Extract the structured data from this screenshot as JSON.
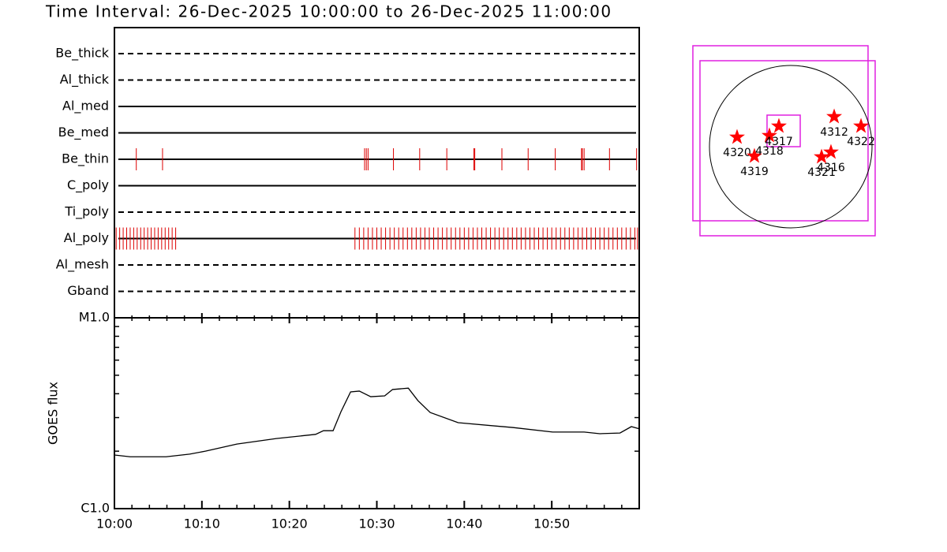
{
  "title": "Time Interval: 26-Dec-2025 10:00:00 to 26-Dec-2025 11:00:00",
  "chart_data": [
    {
      "type": "timeline",
      "categories": [
        "Be_thick",
        "Al_thick",
        "Al_med",
        "Be_med",
        "Be_thin",
        "C_poly",
        "Ti_poly",
        "Al_poly",
        "Al_mesh",
        "Gband"
      ],
      "line_styles": [
        "dashed",
        "dashed",
        "solid",
        "solid",
        "solid",
        "solid",
        "dashed",
        "solid",
        "dashed",
        "dashed"
      ],
      "color": "#dd0000",
      "xlim": [
        0,
        60
      ],
      "events": [
        [],
        [],
        [],
        [],
        [
          2.5,
          5.5,
          28.6,
          28.8,
          29.0,
          31.9,
          34.9,
          38.0,
          41.1,
          41.2,
          44.3,
          47.3,
          50.4,
          53.4,
          53.5,
          53.7,
          56.6,
          59.7
        ],
        [],
        [],
        [
          0.2,
          0.6,
          1.0,
          1.4,
          1.8,
          2.2,
          2.6,
          3.0,
          3.4,
          3.8,
          4.2,
          4.6,
          5.0,
          5.4,
          5.8,
          6.2,
          6.6,
          7.0,
          27.5,
          28.0,
          28.5,
          29.0,
          29.5,
          30.0,
          30.5,
          31.0,
          31.5,
          32.0,
          32.5,
          33.0,
          33.5,
          34.0,
          34.5,
          35.0,
          35.5,
          36.0,
          36.5,
          37.0,
          37.5,
          38.0,
          38.5,
          39.0,
          39.5,
          40.0,
          40.5,
          41.0,
          41.5,
          42.0,
          42.5,
          43.0,
          43.5,
          44.0,
          44.5,
          45.0,
          45.5,
          46.0,
          46.5,
          47.0,
          47.5,
          48.0,
          48.5,
          49.0,
          49.5,
          50.0,
          50.5,
          51.0,
          51.5,
          52.0,
          52.5,
          53.0,
          53.5,
          54.0,
          54.5,
          55.0,
          55.5,
          56.0,
          56.5,
          57.0,
          57.5,
          58.0,
          58.5,
          59.0,
          59.5,
          59.8
        ],
        [],
        []
      ]
    },
    {
      "type": "line",
      "y_label": "GOES flux",
      "color": "#000000",
      "log_scale": true,
      "x": [
        0,
        1.8,
        5.9,
        8.6,
        10.4,
        14,
        18.5,
        23,
        23.9,
        25,
        25.9,
        27,
        28,
        29.3,
        30.9,
        31.8,
        33.6,
        34.7,
        36.1,
        39.3,
        45.6,
        50.1,
        53.7,
        55.5,
        57.8,
        59.1,
        60
      ],
      "values": [
        1.91e-06,
        1.87e-06,
        1.87e-06,
        1.93e-06,
        2e-06,
        2.18e-06,
        2.33e-06,
        2.45e-06,
        2.56e-06,
        2.56e-06,
        3.22e-06,
        4.09e-06,
        4.13e-06,
        3.86e-06,
        3.9e-06,
        4.21e-06,
        4.28e-06,
        3.68e-06,
        3.19e-06,
        2.82e-06,
        2.66e-06,
        2.52e-06,
        2.52e-06,
        2.47e-06,
        2.49e-06,
        2.69e-06,
        2.62e-06
      ],
      "xlim": [
        0,
        60
      ],
      "xticks": [
        {
          "value": 0,
          "label": "10:00"
        },
        {
          "value": 10,
          "label": "10:10"
        },
        {
          "value": 20,
          "label": "10:20"
        },
        {
          "value": 30,
          "label": "10:30"
        },
        {
          "value": 40,
          "label": "10:40"
        },
        {
          "value": 50,
          "label": "10:50"
        }
      ],
      "xminorticks": [
        2,
        4,
        6,
        8,
        12,
        14,
        16,
        18,
        22,
        24,
        26,
        28,
        32,
        34,
        36,
        38,
        42,
        44,
        46,
        48,
        52,
        54,
        56,
        58
      ],
      "ylim": [
        1e-06,
        1e-05
      ],
      "yticks": [
        {
          "value": 1e-06,
          "label": "C1.0"
        },
        {
          "value": 1e-05,
          "label": "M1.0"
        }
      ],
      "yminorticks": [
        2e-06,
        3e-06,
        4e-06,
        5e-06,
        6e-06,
        7e-06,
        8e-06,
        9e-06
      ]
    },
    {
      "type": "map",
      "radius": 960,
      "star_color": "#ff0000",
      "box_color": "#e020e0",
      "fov": [
        {
          "x": [
            -1156,
            913
          ],
          "y": [
            1193,
            -876
          ]
        },
        {
          "x": [
            -1072,
            997
          ],
          "y": [
            1016,
            -1053
          ]
        },
        {
          "x": [
            -280,
            112
          ],
          "y": [
            373,
            0
          ]
        }
      ],
      "regions": [
        {
          "label": "4320",
          "x": -634,
          "y": 112
        },
        {
          "label": "4319",
          "x": -429,
          "y": -112
        },
        {
          "label": "4318",
          "x": -252,
          "y": 130
        },
        {
          "label": "4317",
          "x": -140,
          "y": 242
        },
        {
          "label": "4312",
          "x": 513,
          "y": 354
        },
        {
          "label": "4322",
          "x": 830,
          "y": 242
        },
        {
          "label": "4321",
          "x": 364,
          "y": -121
        },
        {
          "label": "4316",
          "x": 475,
          "y": -65
        }
      ]
    }
  ]
}
